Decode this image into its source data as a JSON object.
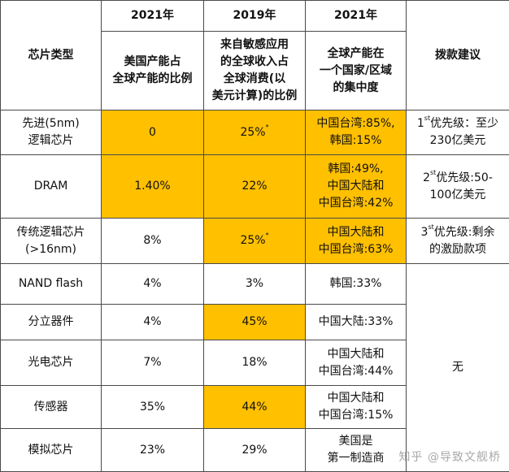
{
  "table": {
    "header": {
      "type_col": "芯片类型",
      "year_cols": [
        "2021年",
        "2019年",
        "2021年"
      ],
      "desc_cols": [
        [
          "美国产能占",
          "全球产能的比例"
        ],
        [
          "来自敏感应用",
          "的全球收入占",
          "全球消费(以",
          "美元计算)的比例"
        ],
        [
          "全球产能在",
          "一个国家/区域",
          "的集中度"
        ]
      ],
      "advice_col": "拨款建议"
    },
    "rows": [
      {
        "type": [
          "先进(5nm)",
          "逻辑芯片"
        ],
        "us_share": "0",
        "revenue": "25%",
        "revenue_star": "*",
        "concentration": [
          "中国台湾:85%,",
          "韩国:15%"
        ]
      },
      {
        "type": [
          "DRAM"
        ],
        "us_share": "1.40%",
        "revenue": "22%",
        "revenue_star": "",
        "concentration": [
          "韩国:49%,",
          "中国大陆和",
          "中国台湾:42%"
        ]
      },
      {
        "type": [
          "传统逻辑芯片",
          "(>16nm)"
        ],
        "us_share": "8%",
        "revenue": "25%",
        "revenue_star": "*",
        "concentration": [
          "中国大陆和",
          "中国台湾:63%"
        ]
      },
      {
        "type": [
          "NAND flash"
        ],
        "us_share": "4%",
        "revenue": "3%",
        "revenue_star": "",
        "concentration": [
          "韩国:33%"
        ]
      },
      {
        "type": [
          "分立器件"
        ],
        "us_share": "4%",
        "revenue": "45%",
        "revenue_star": "",
        "concentration": [
          "中国大陆:33%"
        ]
      },
      {
        "type": [
          "光电芯片"
        ],
        "us_share": "7%",
        "revenue": "18%",
        "revenue_star": "",
        "concentration": [
          "中国大陆和",
          "中国台湾:44%"
        ]
      },
      {
        "type": [
          "传感器"
        ],
        "us_share": "35%",
        "revenue": "44%",
        "revenue_star": "",
        "concentration": [
          "中国大陆和",
          "中国台湾:15%"
        ]
      },
      {
        "type": [
          "模拟芯片"
        ],
        "us_share": "23%",
        "revenue": "29%",
        "revenue_star": "",
        "concentration": [
          "美国是",
          "第一制造商"
        ]
      }
    ],
    "advice": [
      {
        "rank": "1",
        "suffix": "st",
        "lines": [
          "优先级：至少",
          "230亿美元"
        ]
      },
      {
        "rank": "2",
        "suffix": "st",
        "lines": [
          "优先级:50-",
          "100亿美元"
        ]
      },
      {
        "rank": "3",
        "suffix": "st",
        "lines": [
          "优先级:剩余",
          "的激励款项"
        ]
      },
      {
        "rank": "",
        "suffix": "",
        "lines": [
          "无"
        ]
      }
    ],
    "highlight_color": "#ffc000"
  },
  "watermark": "知乎 @导致文舰桥"
}
